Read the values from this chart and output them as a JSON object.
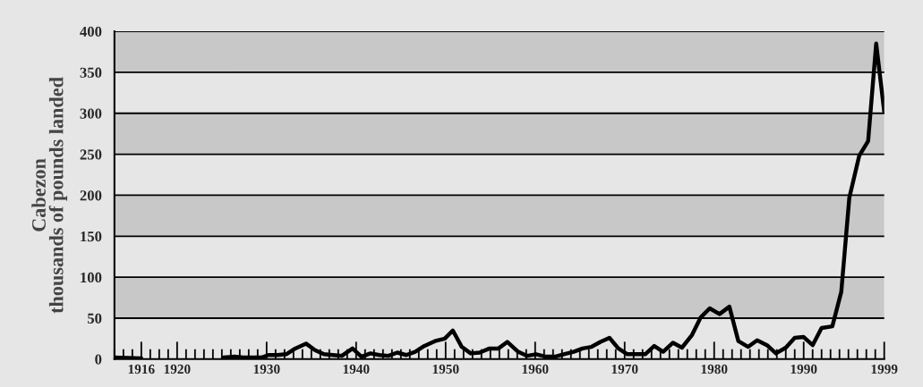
{
  "chart_data": {
    "type": "line",
    "ylabel": "Cabezon\nthousands of pounds landed",
    "x": [
      1913.0,
      1916.0,
      1920.0,
      1925.2,
      1926.4,
      1927.4,
      1928.4,
      1929.4,
      1930.2,
      1931.2,
      1932.2,
      1933.2,
      1934.4,
      1935.4,
      1936.4,
      1937.4,
      1938.4,
      1939.6,
      1940.6,
      1941.6,
      1942.6,
      1943.6,
      1944.6,
      1945.6,
      1946.6,
      1947.6,
      1948.8,
      1949.9,
      1950.8,
      1951.8,
      1952.8,
      1953.8,
      1954.9,
      1955.9,
      1956.9,
      1958.1,
      1959.1,
      1960.1,
      1961.2,
      1962.2,
      1963.2,
      1964.3,
      1965.3,
      1966.3,
      1967.3,
      1968.3,
      1969.3,
      1970.3,
      1971.3,
      1972.3,
      1973.3,
      1974.3,
      1975.4,
      1976.4,
      1977.5,
      1978.5,
      1979.5,
      1980.6,
      1981.7,
      1982.7,
      1983.8,
      1984.8,
      1985.9,
      1986.9,
      1988.0,
      1989.0,
      1990.0,
      1991.0,
      1992.0,
      1993.2,
      1994.2,
      1995.1,
      1996.2,
      1997.2,
      1998.1,
      1999.0
    ],
    "series": [
      {
        "color": "#000000",
        "values": [
          2,
          1,
          null,
          2,
          3,
          2,
          2,
          2,
          5,
          5,
          6,
          13,
          19,
          11,
          6,
          5,
          4,
          13,
          3,
          7,
          5,
          4,
          8,
          5,
          9,
          16,
          22,
          25,
          35,
          15,
          7,
          8,
          13,
          13,
          21,
          9,
          4,
          6,
          3,
          3,
          6,
          9,
          13,
          15,
          21,
          26,
          13,
          6,
          6,
          6,
          16,
          9,
          20,
          14,
          29,
          51,
          62,
          55,
          64,
          22,
          15,
          23,
          17,
          7,
          14,
          26,
          27,
          17,
          38,
          40,
          82,
          197,
          248,
          266,
          385,
          302
        ]
      }
    ],
    "xlim": [
      1913,
      1999
    ],
    "xticks": [
      {
        "value": 1913,
        "label": null
      },
      {
        "value": 1914,
        "label": null
      },
      {
        "value": 1915,
        "label": null
      },
      1916,
      {
        "value": 1917,
        "label": null
      },
      {
        "value": 1918,
        "label": null
      },
      {
        "value": 1919,
        "label": null
      },
      1920,
      {
        "value": 1921,
        "label": null
      },
      {
        "value": 1922,
        "label": null
      },
      {
        "value": 1923,
        "label": null
      },
      {
        "value": 1924,
        "label": null
      },
      {
        "value": 1925,
        "label": null
      },
      {
        "value": 1926,
        "label": null
      },
      {
        "value": 1927,
        "label": null
      },
      {
        "value": 1928,
        "label": null
      },
      {
        "value": 1929,
        "label": null
      },
      1930,
      {
        "value": 1931,
        "label": null
      },
      {
        "value": 1932,
        "label": null
      },
      {
        "value": 1933,
        "label": null
      },
      {
        "value": 1934,
        "label": null
      },
      {
        "value": 1935,
        "label": null
      },
      {
        "value": 1936,
        "label": null
      },
      {
        "value": 1937,
        "label": null
      },
      {
        "value": 1938,
        "label": null
      },
      {
        "value": 1939,
        "label": null
      },
      1940,
      {
        "value": 1941,
        "label": null
      },
      {
        "value": 1942,
        "label": null
      },
      {
        "value": 1943,
        "label": null
      },
      {
        "value": 1944,
        "label": null
      },
      {
        "value": 1945,
        "label": null
      },
      {
        "value": 1946,
        "label": null
      },
      {
        "value": 1947,
        "label": null
      },
      {
        "value": 1948,
        "label": null
      },
      {
        "value": 1949,
        "label": null
      },
      1950,
      {
        "value": 1951,
        "label": null
      },
      {
        "value": 1952,
        "label": null
      },
      {
        "value": 1953,
        "label": null
      },
      {
        "value": 1954,
        "label": null
      },
      {
        "value": 1955,
        "label": null
      },
      {
        "value": 1956,
        "label": null
      },
      {
        "value": 1957,
        "label": null
      },
      {
        "value": 1958,
        "label": null
      },
      {
        "value": 1959,
        "label": null
      },
      1960,
      {
        "value": 1961,
        "label": null
      },
      {
        "value": 1962,
        "label": null
      },
      {
        "value": 1963,
        "label": null
      },
      {
        "value": 1964,
        "label": null
      },
      {
        "value": 1965,
        "label": null
      },
      {
        "value": 1966,
        "label": null
      },
      {
        "value": 1967,
        "label": null
      },
      {
        "value": 1968,
        "label": null
      },
      {
        "value": 1969,
        "label": null
      },
      1970,
      {
        "value": 1971,
        "label": null
      },
      {
        "value": 1972,
        "label": null
      },
      {
        "value": 1973,
        "label": null
      },
      {
        "value": 1974,
        "label": null
      },
      {
        "value": 1975,
        "label": null
      },
      {
        "value": 1976,
        "label": null
      },
      {
        "value": 1977,
        "label": null
      },
      {
        "value": 1978,
        "label": null
      },
      {
        "value": 1979,
        "label": null
      },
      1980,
      {
        "value": 1981,
        "label": null
      },
      {
        "value": 1982,
        "label": null
      },
      {
        "value": 1983,
        "label": null
      },
      {
        "value": 1984,
        "label": null
      },
      {
        "value": 1985,
        "label": null
      },
      {
        "value": 1986,
        "label": null
      },
      {
        "value": 1987,
        "label": null
      },
      {
        "value": 1988,
        "label": null
      },
      {
        "value": 1989,
        "label": null
      },
      1990,
      {
        "value": 1991,
        "label": null
      },
      {
        "value": 1992,
        "label": null
      },
      {
        "value": 1993,
        "label": null
      },
      {
        "value": 1994,
        "label": null
      },
      {
        "value": 1995,
        "label": null
      },
      {
        "value": 1996,
        "label": null
      },
      {
        "value": 1997,
        "label": null
      },
      {
        "value": 1998,
        "label": null
      },
      1999
    ],
    "ylim": [
      0,
      400
    ],
    "yticks": [
      0,
      50,
      100,
      150,
      200,
      250,
      300,
      350,
      400
    ],
    "grid": "y",
    "bands": [
      {
        "axis": "y",
        "from": 50,
        "to": 100,
        "color": "#c8c8c8"
      },
      {
        "axis": "y",
        "from": 150,
        "to": 200,
        "color": "#c8c8c8"
      },
      {
        "axis": "y",
        "from": 250,
        "to": 300,
        "color": "#c8c8c8"
      },
      {
        "axis": "y",
        "from": 350,
        "to": 400,
        "color": "#c8c8c8"
      }
    ]
  }
}
